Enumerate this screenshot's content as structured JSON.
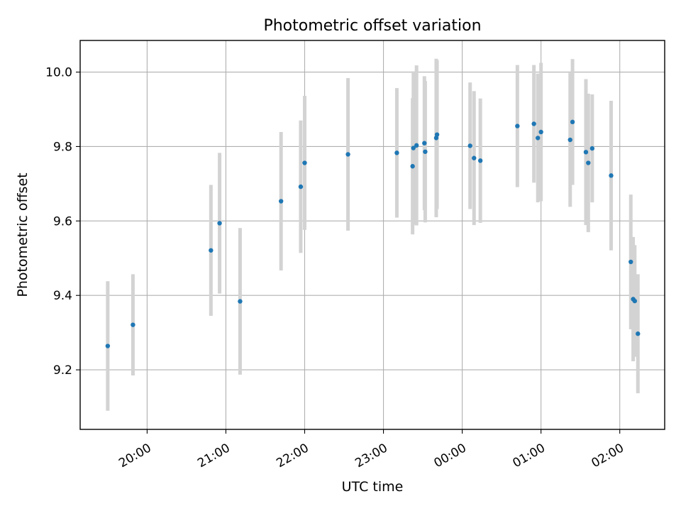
{
  "chart_data": {
    "type": "scatter",
    "title": "Photometric offset variation",
    "xlabel": "UTC time",
    "ylabel": "Photometric offset",
    "x_ticks": [
      "20:00",
      "21:00",
      "22:00",
      "23:00",
      "00:00",
      "01:00",
      "02:00"
    ],
    "x_tick_hours": [
      20,
      21,
      22,
      23,
      24,
      25,
      26
    ],
    "y_ticks": [
      "9.2",
      "9.4",
      "9.6",
      "9.8",
      "10.0"
    ],
    "y_tick_values": [
      9.2,
      9.4,
      9.6,
      9.8,
      10.0
    ],
    "xlim": [
      19.15,
      26.57
    ],
    "ylim": [
      9.04,
      10.085
    ],
    "grid": true,
    "point_color": "#1f77b4",
    "errorbar_color": "#d3d3d3",
    "points": [
      {
        "x": 19.5,
        "y": 9.264,
        "err": 0.174
      },
      {
        "x": 19.82,
        "y": 9.321,
        "err": 0.136
      },
      {
        "x": 20.81,
        "y": 9.521,
        "err": 0.176
      },
      {
        "x": 20.92,
        "y": 9.594,
        "err": 0.189
      },
      {
        "x": 21.18,
        "y": 9.384,
        "err": 0.197
      },
      {
        "x": 21.7,
        "y": 9.653,
        "err": 0.186
      },
      {
        "x": 21.95,
        "y": 9.692,
        "err": 0.178
      },
      {
        "x": 22.0,
        "y": 9.756,
        "err": 0.18
      },
      {
        "x": 22.55,
        "y": 9.779,
        "err": 0.205
      },
      {
        "x": 23.17,
        "y": 9.783,
        "err": 0.174
      },
      {
        "x": 23.37,
        "y": 9.747,
        "err": 0.183
      },
      {
        "x": 23.38,
        "y": 9.796,
        "err": 0.206
      },
      {
        "x": 23.42,
        "y": 9.803,
        "err": 0.215
      },
      {
        "x": 23.52,
        "y": 9.809,
        "err": 0.18
      },
      {
        "x": 23.53,
        "y": 9.786,
        "err": 0.19
      },
      {
        "x": 23.67,
        "y": 9.823,
        "err": 0.213
      },
      {
        "x": 23.68,
        "y": 9.832,
        "err": 0.2
      },
      {
        "x": 24.1,
        "y": 9.802,
        "err": 0.17
      },
      {
        "x": 24.15,
        "y": 9.769,
        "err": 0.18
      },
      {
        "x": 24.23,
        "y": 9.762,
        "err": 0.167
      },
      {
        "x": 24.7,
        "y": 9.855,
        "err": 0.164
      },
      {
        "x": 24.91,
        "y": 9.861,
        "err": 0.158
      },
      {
        "x": 24.96,
        "y": 9.823,
        "err": 0.173
      },
      {
        "x": 25.0,
        "y": 9.839,
        "err": 0.186
      },
      {
        "x": 25.37,
        "y": 9.818,
        "err": 0.18
      },
      {
        "x": 25.4,
        "y": 9.866,
        "err": 0.169
      },
      {
        "x": 25.57,
        "y": 9.785,
        "err": 0.196
      },
      {
        "x": 25.6,
        "y": 9.756,
        "err": 0.186
      },
      {
        "x": 25.65,
        "y": 9.795,
        "err": 0.145
      },
      {
        "x": 25.89,
        "y": 9.722,
        "err": 0.201
      },
      {
        "x": 26.14,
        "y": 9.49,
        "err": 0.181
      },
      {
        "x": 26.17,
        "y": 9.39,
        "err": 0.167
      },
      {
        "x": 26.19,
        "y": 9.385,
        "err": 0.15
      },
      {
        "x": 26.23,
        "y": 9.297,
        "err": 0.16
      }
    ]
  }
}
